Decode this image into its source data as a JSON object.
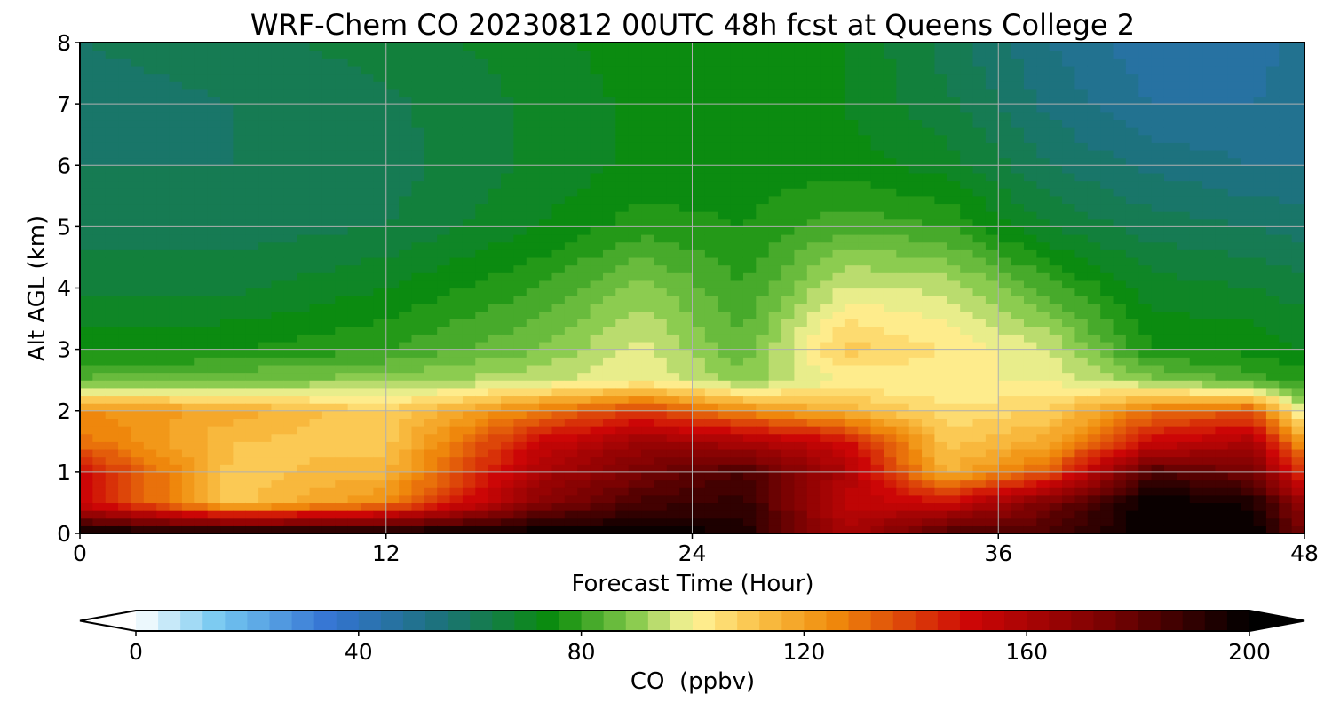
{
  "chart_data": {
    "type": "heatmap",
    "title": "WRF-Chem CO  20230812 00UTC 48h fcst at Queens College 2",
    "xlabel": "Forecast Time (Hour)",
    "ylabel": "Alt AGL (km)",
    "xlim": [
      0,
      48
    ],
    "ylim": [
      0,
      8
    ],
    "xticks": [
      0,
      12,
      24,
      36,
      48
    ],
    "yticks": [
      0,
      1,
      2,
      3,
      4,
      5,
      6,
      7,
      8
    ],
    "grid": true,
    "colorbar": {
      "label": "CO  (ppbv)",
      "orientation": "horizontal",
      "placement": "bottom",
      "range": [
        0,
        200
      ],
      "ticks": [
        0,
        40,
        80,
        120,
        160,
        200
      ],
      "extend": "both",
      "colors": [
        {
          "value": 0,
          "color": "#ffffff"
        },
        {
          "value": 15,
          "color": "#74c7f0"
        },
        {
          "value": 35,
          "color": "#3473d2"
        },
        {
          "value": 55,
          "color": "#1c727a"
        },
        {
          "value": 75,
          "color": "#0a8c0a"
        },
        {
          "value": 90,
          "color": "#8ccc50"
        },
        {
          "value": 100,
          "color": "#fff59a"
        },
        {
          "value": 112,
          "color": "#fac046"
        },
        {
          "value": 125,
          "color": "#f08c0c"
        },
        {
          "value": 150,
          "color": "#cc0606"
        },
        {
          "value": 175,
          "color": "#780202"
        },
        {
          "value": 200,
          "color": "#000000"
        }
      ]
    },
    "profile_hours": [
      0,
      6,
      12,
      18,
      22,
      26,
      30,
      34,
      38,
      42,
      46,
      48
    ],
    "profile_heights_km": [
      0,
      0.5,
      1,
      1.5,
      2,
      2.5,
      3,
      4,
      5,
      6,
      7,
      8
    ],
    "values_ppbv": [
      [
        200,
        150,
        150,
        130,
        125,
        85,
        75,
        67,
        62,
        60,
        58,
        60
      ],
      [
        200,
        110,
        110,
        112,
        118,
        88,
        76,
        67,
        62,
        60,
        60,
        62
      ],
      [
        200,
        125,
        115,
        110,
        108,
        90,
        80,
        72,
        64,
        62,
        63,
        66
      ],
      [
        200,
        170,
        160,
        150,
        128,
        95,
        88,
        80,
        72,
        69,
        69,
        70
      ],
      [
        200,
        185,
        175,
        165,
        140,
        100,
        98,
        90,
        78,
        73,
        73,
        75
      ],
      [
        195,
        190,
        185,
        160,
        125,
        90,
        85,
        80,
        76,
        74,
        75,
        76
      ],
      [
        160,
        155,
        160,
        150,
        115,
        100,
        110,
        97,
        83,
        74,
        72,
        72
      ],
      [
        185,
        150,
        115,
        110,
        105,
        100,
        104,
        95,
        80,
        70,
        65,
        62
      ],
      [
        185,
        175,
        135,
        118,
        108,
        100,
        96,
        82,
        68,
        60,
        55,
        52
      ],
      [
        200,
        200,
        185,
        150,
        130,
        90,
        76,
        70,
        62,
        55,
        48,
        45
      ],
      [
        200,
        195,
        175,
        160,
        135,
        82,
        75,
        68,
        60,
        52,
        48,
        46
      ],
      [
        175,
        165,
        140,
        120,
        95,
        78,
        72,
        66,
        58,
        52,
        50,
        50
      ]
    ]
  }
}
